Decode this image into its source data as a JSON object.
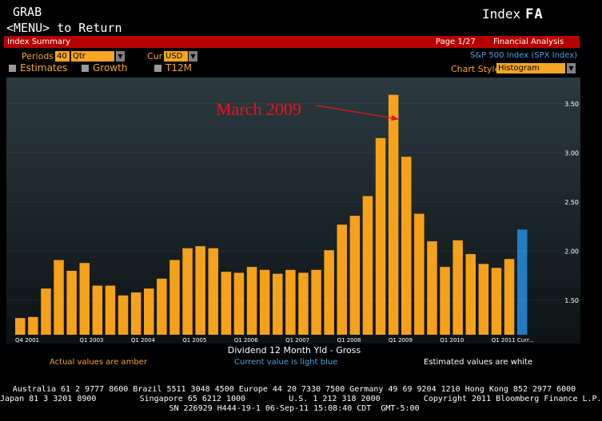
{
  "header": {
    "grab": "GRAB",
    "menu_return": "<MENU> to Return",
    "index_label": "Index",
    "fa_label": "FA"
  },
  "titlebar": {
    "left": "Index Summary",
    "page": "Page 1/27",
    "right": "Financial Analysis"
  },
  "controls": {
    "periods_label": "Periods",
    "periods_value": "40",
    "period_type": "Qtr",
    "currency_label": "Cur",
    "currency_value": "USD",
    "security": "S&P 500 Index (SPX Index)",
    "options": [
      "Estimates",
      "Growth",
      "T12M"
    ],
    "chart_style_label": "Chart Style",
    "chart_style_value": "Histogram"
  },
  "annotation": {
    "text": "March 2009",
    "color": "#e8141e"
  },
  "chart_data": {
    "type": "bar",
    "x_tick_labels": [
      "Q4 2001",
      "Q1 2003",
      "Q1 2004",
      "Q1 2005",
      "Q1 2006",
      "Q1 2007",
      "Q1 2008",
      "Q1 2009",
      "Q1 2010",
      "Q1 2011",
      "Curr..."
    ],
    "values": [
      1.32,
      1.33,
      1.62,
      1.91,
      1.8,
      1.88,
      1.65,
      1.65,
      1.55,
      1.58,
      1.62,
      1.72,
      1.91,
      2.03,
      2.05,
      2.03,
      1.79,
      1.78,
      1.84,
      1.81,
      1.77,
      1.81,
      1.78,
      1.81,
      2.01,
      2.27,
      2.36,
      2.56,
      3.15,
      3.59,
      2.96,
      2.38,
      2.1,
      1.84,
      2.11,
      1.97,
      1.87,
      1.83,
      1.92,
      2.22
    ],
    "current_index": 39,
    "ylim": [
      1.15,
      3.75
    ],
    "yticks": [
      "1.50",
      "2.00",
      "2.50",
      "3.00",
      "3.50"
    ],
    "xlabel": "Dividend 12 Month Yld - Gross",
    "colors": {
      "actual": "#f5a11a",
      "current": "#1f7ec2"
    },
    "grid": false
  },
  "legend": {
    "actual": "Actual values are amber",
    "current": "Current value is light blue",
    "estimated": "Estimated values are white"
  },
  "footer": {
    "line1": "Australia 61 2 9777 8600 Brazil 5511 3048 4500 Europe 44 20 7330 7500 Germany 49 69 9204 1210 Hong Kong 852 2977 6000",
    "line2": "Japan 81 3 3201 8900         Singapore 65 6212 1000         U.S. 1 212 318 2000         Copyright 2011 Bloomberg Finance L.P.",
    "line3": "SN 226929 H444-19-1 06-Sep-11 15:08:40 CDT  GMT-5:00"
  }
}
